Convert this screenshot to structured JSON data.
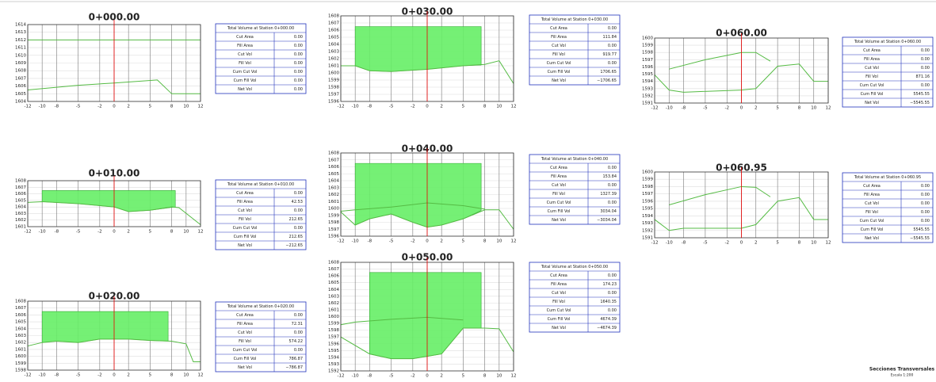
{
  "row_labels": [
    "Cut Area",
    "Fill Area",
    "Cut Vol",
    "Fill Vol",
    "Cum Cut Vol",
    "Cum Fill Vol",
    "Net Vol"
  ],
  "footer": {
    "title": "Secciones Transversales",
    "scale": "Escala 1:200"
  },
  "xticks": [
    -12,
    -10,
    -8,
    -5,
    -2,
    0,
    2,
    5,
    8,
    10,
    12
  ],
  "sections": [
    {
      "title": "0+000.00",
      "table_title": "Total Volume at Station 0+000.00",
      "values": [
        "0.00",
        "0.00",
        "0.00",
        "0.00",
        "0.00",
        "0.00",
        "0.00"
      ],
      "ylim": [
        1604,
        1614
      ],
      "yticks": [
        1604,
        1605,
        1606,
        1607,
        1608,
        1609,
        1610,
        1611,
        1612,
        1613,
        1614
      ],
      "profiles": [
        {
          "x": [
            -12,
            -5,
            0,
            6,
            8,
            12
          ],
          "y": [
            1605.5,
            1606.1,
            1606.4,
            1606.8,
            1605,
            1605
          ]
        },
        {
          "x": [
            -12,
            12
          ],
          "y": [
            1612,
            1612
          ]
        }
      ]
    },
    {
      "title": "0+010.00",
      "table_title": "Total Volume at Station 0+010.00",
      "values": [
        "0.00",
        "42.53",
        "0.00",
        "212.65",
        "0.00",
        "212.65",
        "−212.65"
      ],
      "ylim": [
        1601,
        1608
      ],
      "yticks": [
        1601,
        1602,
        1603,
        1604,
        1605,
        1606,
        1607,
        1608
      ],
      "fill": {
        "x": [
          -10,
          8.5,
          8.5,
          5,
          2,
          0,
          -5,
          -10
        ],
        "y": [
          1606.5,
          1606.5,
          1604,
          1603.5,
          1603.3,
          1604,
          1604.5,
          1604.8
        ]
      },
      "profiles": [
        {
          "x": [
            -12,
            -10,
            -5,
            0,
            2,
            5,
            8,
            9,
            12
          ],
          "y": [
            1604.7,
            1604.8,
            1604.5,
            1604,
            1603.3,
            1603.5,
            1604,
            1603.9,
            1601.3
          ]
        }
      ]
    },
    {
      "title": "0+020.00",
      "table_title": "Total Volume at Station 0+020.00",
      "values": [
        "0.00",
        "72.31",
        "0.00",
        "574.22",
        "0.00",
        "786.87",
        "−786.87"
      ],
      "ylim": [
        1598,
        1608
      ],
      "yticks": [
        1598,
        1599,
        1600,
        1601,
        1602,
        1603,
        1604,
        1605,
        1606,
        1607,
        1608
      ],
      "fill": {
        "x": [
          -10,
          7.5,
          7.5,
          5,
          2,
          -2,
          -5,
          -8,
          -10
        ],
        "y": [
          1606.5,
          1606.5,
          1602.2,
          1602.3,
          1602.5,
          1602.5,
          1602,
          1602.2,
          1602
        ]
      },
      "profiles": [
        {
          "x": [
            -12,
            -10,
            -8,
            -5,
            -2,
            2,
            5,
            8,
            10,
            11,
            12
          ],
          "y": [
            1601.5,
            1602,
            1602.2,
            1602,
            1602.5,
            1602.5,
            1602.3,
            1602.2,
            1601.8,
            1599.2,
            1599.2
          ]
        }
      ]
    },
    {
      "title": "0+030.00",
      "table_title": "Total Volume at Station 0+030.00",
      "values": [
        "0.00",
        "111.84",
        "0.00",
        "919.77",
        "0.00",
        "1706.65",
        "−1706.65"
      ],
      "ylim": [
        1596,
        1608
      ],
      "yticks": [
        1596,
        1597,
        1598,
        1599,
        1600,
        1601,
        1602,
        1603,
        1604,
        1605,
        1606,
        1607,
        1608
      ],
      "fill": {
        "x": [
          -10,
          7.5,
          7.5,
          5,
          0,
          -5,
          -8,
          -10
        ],
        "y": [
          1606.5,
          1606.5,
          1601.1,
          1601,
          1600.5,
          1600.2,
          1600.3,
          1601
        ]
      },
      "profiles": [
        {
          "x": [
            -12,
            -10,
            -8,
            -5,
            0,
            5,
            8,
            10,
            12
          ],
          "y": [
            1601,
            1601,
            1600.3,
            1600.2,
            1600.5,
            1601,
            1601.2,
            1601.7,
            1598.5
          ]
        }
      ]
    },
    {
      "title": "0+040.00",
      "table_title": "Total Volume at Station 0+040.00",
      "values": [
        "0.00",
        "153.84",
        "0.00",
        "1327.39",
        "0.00",
        "3034.04",
        "−3034.04"
      ],
      "ylim": [
        1596,
        1608
      ],
      "yticks": [
        1596,
        1597,
        1598,
        1599,
        1600,
        1601,
        1602,
        1603,
        1604,
        1605,
        1606,
        1607,
        1608
      ],
      "fill": {
        "x": [
          -10,
          7.5,
          7.5,
          5,
          2,
          0,
          -2,
          -5,
          -8,
          -10
        ],
        "y": [
          1606.5,
          1606.5,
          1599.7,
          1598.5,
          1597.6,
          1597.3,
          1598,
          1599.2,
          1598.5,
          1597.6
        ]
      },
      "profiles": [
        {
          "x": [
            -12,
            -10,
            -8,
            -5,
            -2,
            0,
            2,
            5,
            8,
            10,
            12
          ],
          "y": [
            1599.5,
            1597.6,
            1598.5,
            1599.2,
            1598,
            1597.3,
            1597.6,
            1598.5,
            1599.8,
            1599.8,
            1597
          ]
        },
        {
          "x": [
            -12,
            -10,
            -5,
            0,
            5,
            8
          ],
          "y": [
            1599.6,
            1599.8,
            1600.2,
            1600.8,
            1600.4,
            1599.9
          ]
        }
      ]
    },
    {
      "title": "0+050.00",
      "table_title": "Total Volume at Station 0+050.00",
      "values": [
        "0.00",
        "174.23",
        "0.00",
        "1640.35",
        "0.00",
        "4674.39",
        "−4674.39"
      ],
      "ylim": [
        1592,
        1608
      ],
      "yticks": [
        1592,
        1593,
        1594,
        1595,
        1596,
        1597,
        1598,
        1599,
        1600,
        1601,
        1602,
        1603,
        1604,
        1605,
        1606,
        1607,
        1608
      ],
      "fill": {
        "x": [
          -8,
          7.5,
          7.5,
          5,
          2,
          -2,
          -5,
          -8
        ],
        "y": [
          1606.5,
          1606.5,
          1598.3,
          1598.3,
          1594.5,
          1593.8,
          1593.8,
          1594.5
        ]
      },
      "profiles": [
        {
          "x": [
            -12,
            -8,
            -5,
            -2,
            2,
            5,
            8,
            10,
            12
          ],
          "y": [
            1597,
            1594.5,
            1593.8,
            1593.8,
            1594.5,
            1598.3,
            1598.3,
            1598.2,
            1594.8
          ]
        },
        {
          "x": [
            -12,
            -10,
            -5,
            0,
            5
          ],
          "y": [
            1598.8,
            1599.2,
            1599.6,
            1599.9,
            1599.5
          ]
        }
      ]
    },
    {
      "title": "0+060.00",
      "table_title": "Total Volume at Station 0+060.00",
      "values": [
        "0.00",
        "0.00",
        "0.00",
        "871.16",
        "0.00",
        "5545.55",
        "−5545.55"
      ],
      "ylim": [
        1591,
        1600
      ],
      "yticks": [
        1591,
        1592,
        1593,
        1594,
        1595,
        1596,
        1597,
        1598,
        1599,
        1600
      ],
      "profiles": [
        {
          "x": [
            -12,
            -10,
            -8,
            0,
            2,
            5,
            8,
            10,
            12
          ],
          "y": [
            1594.9,
            1592.8,
            1592.5,
            1592.8,
            1593,
            1596.1,
            1596.4,
            1594,
            1594
          ]
        },
        {
          "x": [
            -10,
            -5,
            0,
            2,
            4
          ],
          "y": [
            1595.7,
            1597,
            1598,
            1598,
            1596.8
          ]
        }
      ]
    },
    {
      "title": "0+060.95",
      "table_title": "Total Volume at Station 0+060.95",
      "values": [
        "0.00",
        "0.00",
        "0.00",
        "0.00",
        "0.00",
        "5545.55",
        "−5545.55"
      ],
      "ylim": [
        1591,
        1600
      ],
      "yticks": [
        1591,
        1592,
        1593,
        1594,
        1595,
        1596,
        1597,
        1598,
        1599,
        1600
      ],
      "profiles": [
        {
          "x": [
            -12,
            -10,
            -8,
            0,
            2,
            5,
            8,
            10,
            12
          ],
          "y": [
            1593.5,
            1592,
            1592.3,
            1592.3,
            1592.8,
            1596,
            1596.5,
            1593.5,
            1593.5
          ]
        },
        {
          "x": [
            -10,
            -5,
            0,
            2,
            4
          ],
          "y": [
            1595.5,
            1596.9,
            1598,
            1597.9,
            1596.6
          ]
        }
      ]
    }
  ]
}
